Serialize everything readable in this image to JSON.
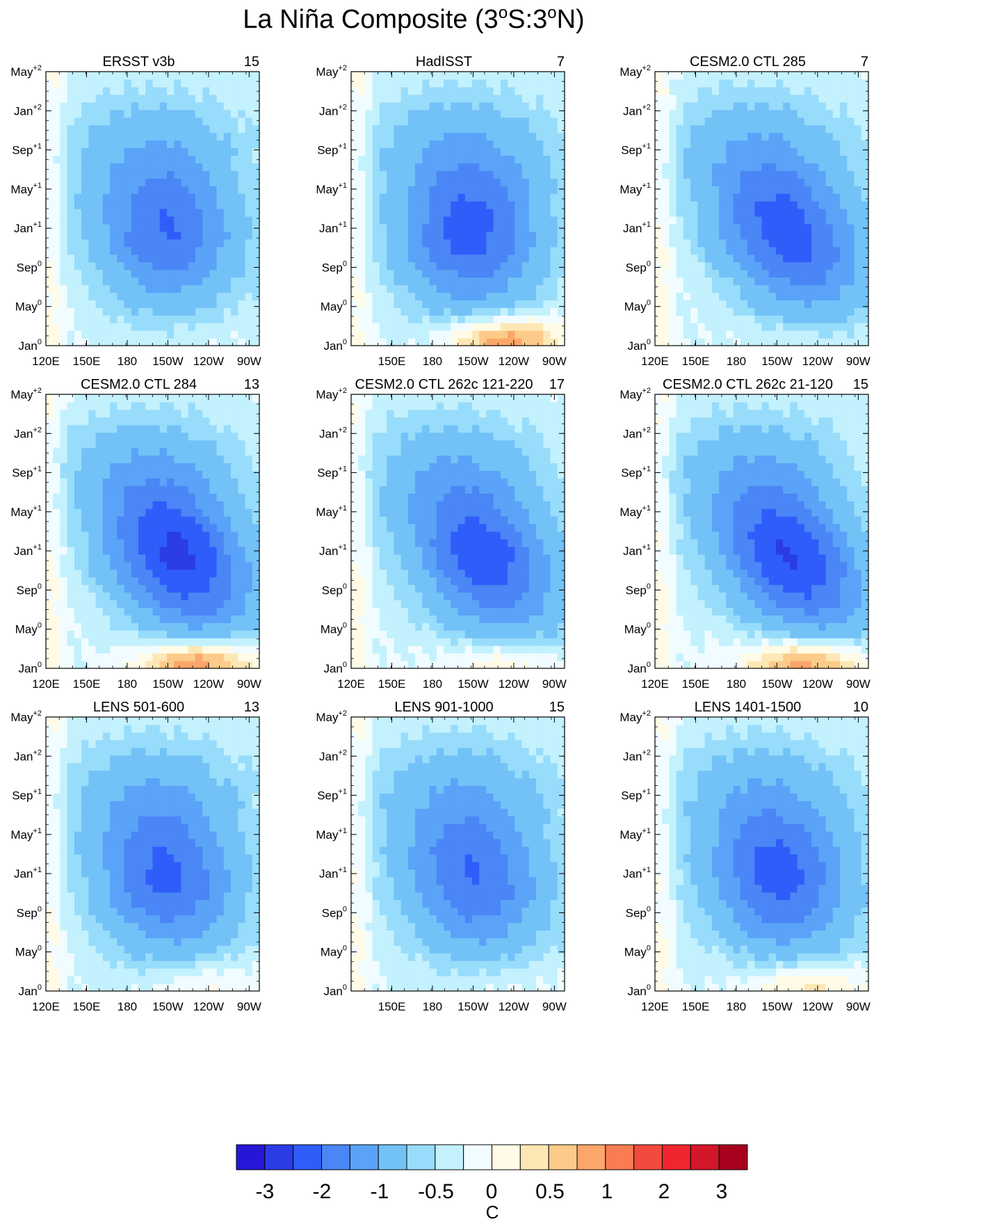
{
  "chart_data": {
    "type": "heatmap",
    "title": "La Niña Composite (3°S:3°N)",
    "title_parts": {
      "prefix": "La Niña Composite (3",
      "deg1": "o",
      "mid": "S:3",
      "deg2": "o",
      "suffix": "N)"
    },
    "colorbar": {
      "unit_label": "C",
      "labels": [
        "-3",
        "-2",
        "-1",
        "-0.5",
        "0",
        "0.5",
        "1",
        "2",
        "3"
      ],
      "colors": [
        "#2617d6",
        "#2a3ce6",
        "#2f5dfa",
        "#4a86f5",
        "#5aa3f8",
        "#72c2f8",
        "#98dcfb",
        "#c3f1fd",
        "#f0fcff",
        "#fffbe6",
        "#fde7b5",
        "#fccb8a",
        "#fca66a",
        "#f97c52",
        "#f24a3c",
        "#f0262f",
        "#d3162a",
        "#a8001f"
      ]
    },
    "x_tick_labels": [
      "120E",
      "150E",
      "180",
      "150W",
      "120W",
      "90W"
    ],
    "y_tick_labels": [
      {
        "base": "Jan",
        "sup": "0"
      },
      {
        "base": "May",
        "sup": "0"
      },
      {
        "base": "Sep",
        "sup": "0"
      },
      {
        "base": "Jan",
        "sup": "+1"
      },
      {
        "base": "May",
        "sup": "+1"
      },
      {
        "base": "Sep",
        "sup": "+1"
      },
      {
        "base": "Jan",
        "sup": "+2"
      },
      {
        "base": "May",
        "sup": "+2"
      }
    ],
    "panels": [
      {
        "name": "ERSST v3b",
        "count": "15",
        "show_120E": true,
        "warm_east": 0.05,
        "min_value": -2.0,
        "decay": 0.55,
        "tilt": 0.1
      },
      {
        "name": "HadISST",
        "count": "7",
        "show_120E": false,
        "warm_east": 0.6,
        "min_value": -2.2,
        "decay": 0.75,
        "tilt": 0.05
      },
      {
        "name": "CESM2.0 CTL 285",
        "count": "7",
        "show_120E": true,
        "warm_east": 0.1,
        "min_value": -2.3,
        "decay": 0.6,
        "tilt": 0.6
      },
      {
        "name": "CESM2.0 CTL 284",
        "count": "13",
        "show_120E": true,
        "warm_east": 0.7,
        "min_value": -2.6,
        "decay": 0.65,
        "tilt": 0.6
      },
      {
        "name": "CESM2.0 CTL 262c 121-220",
        "count": "17",
        "show_120E": true,
        "warm_east": 0.3,
        "min_value": -2.3,
        "decay": 0.6,
        "tilt": 0.6
      },
      {
        "name": "CESM2.0 CTL 262c 21-120",
        "count": "15",
        "show_120E": true,
        "warm_east": 0.65,
        "min_value": -2.5,
        "decay": 0.55,
        "tilt": 0.7
      },
      {
        "name": "LENS 501-600",
        "count": "13",
        "show_120E": true,
        "warm_east": 0.2,
        "min_value": -2.1,
        "decay": 0.65,
        "tilt": 0.15
      },
      {
        "name": "LENS 901-1000",
        "count": "15",
        "show_120E": false,
        "warm_east": 0.1,
        "min_value": -2.0,
        "decay": 0.65,
        "tilt": 0.2
      },
      {
        "name": "LENS 1401-1500",
        "count": "10",
        "show_120E": true,
        "warm_east": 0.35,
        "min_value": -2.2,
        "decay": 0.6,
        "tilt": 0.25
      }
    ]
  }
}
